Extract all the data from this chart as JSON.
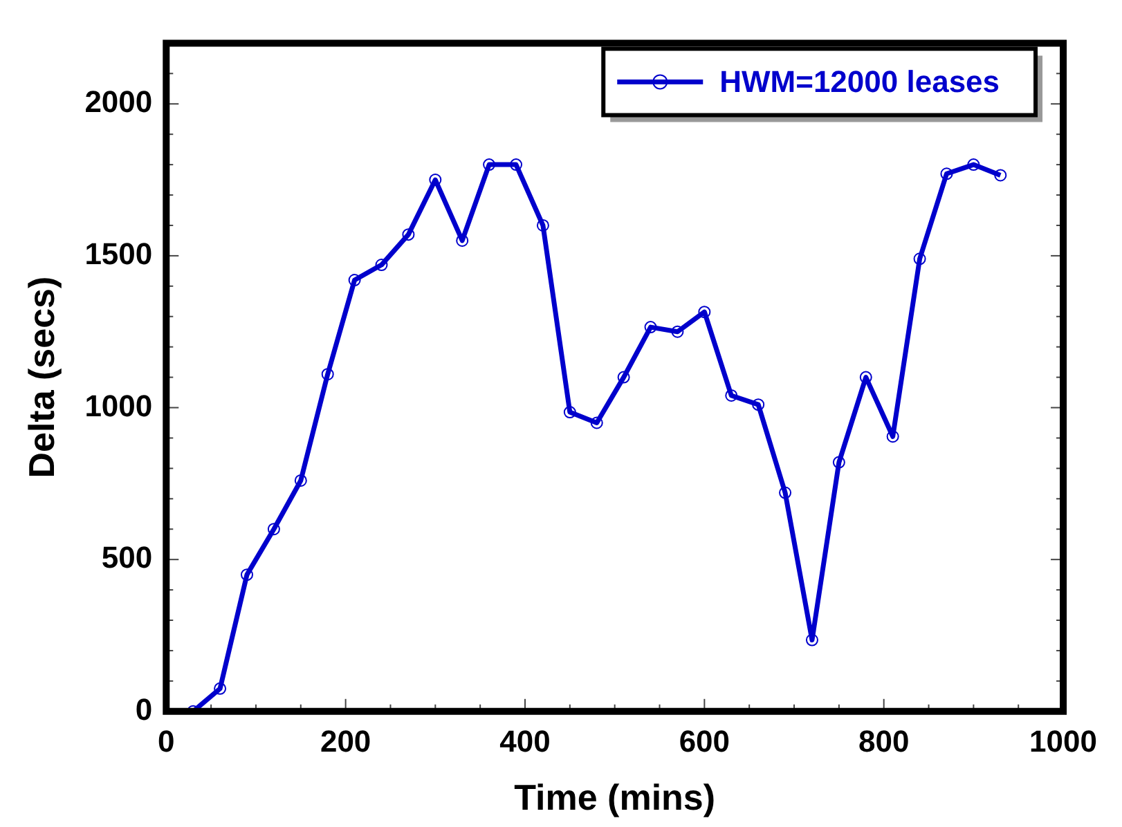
{
  "chart_data": {
    "type": "line",
    "xlabel": "Time (mins)",
    "ylabel": "Delta (secs)",
    "x": [
      30,
      60,
      90,
      120,
      150,
      180,
      210,
      240,
      270,
      300,
      330,
      360,
      390,
      420,
      450,
      480,
      510,
      540,
      570,
      600,
      630,
      660,
      690,
      720,
      750,
      780,
      810,
      840,
      870,
      900,
      930
    ],
    "series": [
      {
        "name": "HWM=12000 leases",
        "color": "#0000cc",
        "values": [
          0,
          75,
          450,
          600,
          760,
          1110,
          1420,
          1470,
          1570,
          1750,
          1550,
          1800,
          1800,
          1600,
          985,
          950,
          1100,
          1265,
          1250,
          1315,
          1040,
          1010,
          720,
          235,
          820,
          1100,
          905,
          1490,
          1770,
          1800,
          1765
        ]
      }
    ],
    "xlim": [
      0,
      1000
    ],
    "xticks": [
      0,
      {
        "value": 50,
        "label": null
      },
      200,
      {
        "value": 100,
        "label": null
      },
      {
        "value": 150,
        "label": null
      },
      {
        "value": 250,
        "label": null
      },
      {
        "value": 300,
        "label": null
      },
      {
        "value": 350,
        "label": null
      },
      400,
      {
        "value": 450,
        "label": null
      },
      {
        "value": 500,
        "label": null
      },
      {
        "value": 550,
        "label": null
      },
      600,
      {
        "value": 650,
        "label": null
      },
      {
        "value": 700,
        "label": null
      },
      {
        "value": 750,
        "label": null
      },
      800,
      {
        "value": 850,
        "label": null
      },
      {
        "value": 900,
        "label": null
      },
      {
        "value": 950,
        "label": null
      },
      1000
    ],
    "ylim": [
      0,
      2200
    ],
    "yticks": [
      0,
      {
        "value": 100,
        "label": null
      },
      {
        "value": 200,
        "label": null
      },
      {
        "value": 300,
        "label": null
      },
      {
        "value": 400,
        "label": null
      },
      500,
      {
        "value": 600,
        "label": null
      },
      {
        "value": 700,
        "label": null
      },
      {
        "value": 800,
        "label": null
      },
      {
        "value": 900,
        "label": null
      },
      1000,
      {
        "value": 1100,
        "label": null
      },
      {
        "value": 1200,
        "label": null
      },
      {
        "value": 1300,
        "label": null
      },
      {
        "value": 1400,
        "label": null
      },
      1500,
      {
        "value": 1600,
        "label": null
      },
      {
        "value": 1700,
        "label": null
      },
      {
        "value": 1800,
        "label": null
      },
      {
        "value": 1900,
        "label": null
      },
      2000,
      {
        "value": 2100,
        "label": null
      },
      {
        "value": 2200,
        "label": null
      }
    ],
    "grid": false,
    "legend": "top right",
    "marker": "circle",
    "line_style": "solid"
  }
}
